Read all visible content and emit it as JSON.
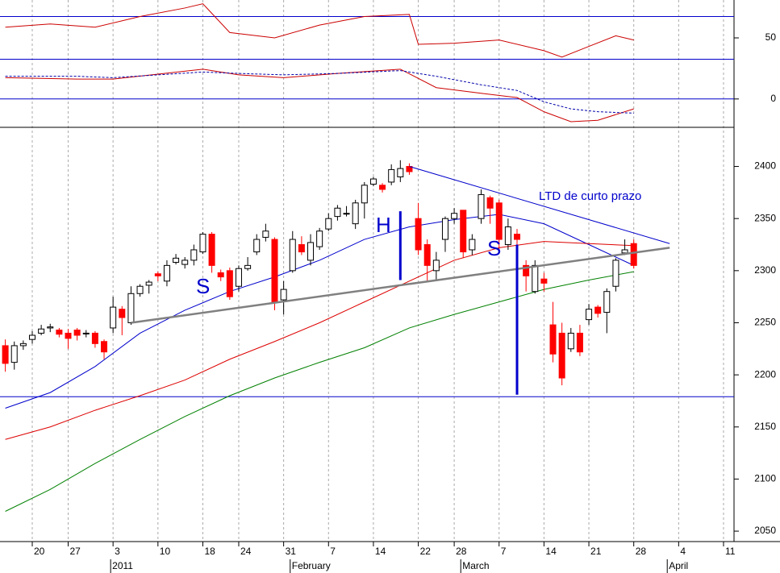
{
  "chart_data": {
    "type": "candlestick",
    "categories": [
      null,
      null,
      null,
      "20",
      null,
      null,
      null,
      "27",
      null,
      null,
      null,
      null,
      "3",
      null,
      null,
      null,
      null,
      "10",
      null,
      null,
      null,
      null,
      "18",
      null,
      null,
      null,
      "24",
      null,
      null,
      null,
      null,
      "31",
      null,
      null,
      null,
      null,
      "7",
      null,
      null,
      null,
      null,
      "14",
      null,
      null,
      null,
      null,
      "22",
      null,
      null,
      null,
      "28",
      null,
      null,
      null,
      null,
      "7",
      null,
      null,
      null,
      null,
      "14",
      null,
      null,
      null,
      null,
      "21",
      null,
      null,
      null,
      null,
      "28",
      null,
      null,
      null,
      null,
      "4",
      null,
      null,
      null,
      null,
      "11"
    ],
    "months": [
      "2011",
      "February",
      "March",
      "April"
    ],
    "grid": true,
    "price": {
      "ylim": [
        2040,
        2436
      ],
      "yticks": [
        2050,
        2100,
        2150,
        2200,
        2250,
        2300,
        2350,
        2400
      ],
      "up_color": "#ffffff",
      "down_color": "#ff0000",
      "open": [
        2228,
        2212,
        2228,
        2234,
        2240,
        2245,
        2243,
        2240,
        2243,
        2240,
        2240,
        2232,
        2245,
        2263,
        2250,
        2278,
        2286,
        2297,
        2290,
        2308,
        2306,
        2310,
        2318,
        2335,
        2298,
        2300,
        2285,
        2302,
        2318,
        2332,
        2330,
        2272,
        2300,
        2325,
        2310,
        2323,
        2340,
        2352,
        2355,
        2345,
        2365,
        2383,
        2382,
        2385,
        2390,
        2400,
        2350,
        2325,
        2300,
        2330,
        2350,
        2358,
        2320,
        2350,
        2370,
        2365,
        2325,
        2335,
        2305,
        2280,
        2292,
        2248,
        2240,
        2225,
        2240,
        2253,
        2265,
        2260,
        2285,
        2317,
        2326,
        null,
        null,
        null,
        null,
        null,
        null,
        null,
        null,
        null,
        null
      ],
      "high": [
        2234,
        2232,
        2233,
        2242,
        2248,
        2249,
        2245,
        2244,
        2245,
        2243,
        2242,
        2234,
        2275,
        2266,
        2285,
        2287,
        2291,
        2299,
        2310,
        2316,
        2313,
        2325,
        2337,
        2337,
        2301,
        2303,
        2305,
        2313,
        2335,
        2345,
        2332,
        2290,
        2338,
        2333,
        2335,
        2341,
        2355,
        2363,
        2362,
        2368,
        2385,
        2390,
        2384,
        2402,
        2406,
        2403,
        2365,
        2330,
        2318,
        2352,
        2360,
        2358,
        2335,
        2378,
        2372,
        2368,
        2350,
        2340,
        2310,
        2310,
        2298,
        2270,
        2250,
        2245,
        2248,
        2268,
        2267,
        2283,
        2312,
        2330,
        2330,
        null,
        null,
        null,
        null,
        null,
        null,
        null,
        null,
        null,
        null
      ],
      "low": [
        2203,
        2205,
        2224,
        2230,
        2238,
        2241,
        2236,
        2225,
        2233,
        2236,
        2226,
        2215,
        2240,
        2238,
        2248,
        2275,
        2278,
        2290,
        2285,
        2306,
        2302,
        2305,
        2316,
        2298,
        2290,
        2272,
        2280,
        2300,
        2315,
        2328,
        2262,
        2258,
        2298,
        2315,
        2305,
        2320,
        2338,
        2348,
        2352,
        2340,
        2350,
        2381,
        2375,
        2382,
        2385,
        2392,
        2315,
        2290,
        2290,
        2318,
        2345,
        2312,
        2315,
        2345,
        2345,
        2320,
        2320,
        2318,
        2280,
        2278,
        2280,
        2212,
        2190,
        2222,
        2218,
        2248,
        2255,
        2240,
        2280,
        2315,
        2302,
        null,
        null,
        null,
        null,
        null,
        null,
        null,
        null,
        null,
        null
      ],
      "close": [
        2211,
        2228,
        2230,
        2238,
        2244,
        2246,
        2239,
        2235,
        2238,
        2240,
        2230,
        2222,
        2265,
        2255,
        2278,
        2285,
        2289,
        2295,
        2305,
        2312,
        2310,
        2320,
        2335,
        2305,
        2294,
        2275,
        2302,
        2305,
        2330,
        2338,
        2270,
        2282,
        2330,
        2318,
        2327,
        2338,
        2350,
        2360,
        2355,
        2365,
        2382,
        2388,
        2378,
        2397,
        2398,
        2395,
        2320,
        2305,
        2310,
        2350,
        2355,
        2318,
        2330,
        2373,
        2360,
        2330,
        2342,
        2330,
        2295,
        2305,
        2288,
        2220,
        2197,
        2240,
        2222,
        2263,
        2259,
        2280,
        2310,
        2320,
        2305,
        null,
        null,
        null,
        null,
        null,
        null,
        null,
        null,
        null,
        null
      ],
      "moving_averages": [
        {
          "color": "#0000cc",
          "x": [
            0,
            5,
            10,
            15,
            20,
            25,
            30,
            35,
            40,
            45,
            50,
            55,
            60,
            65,
            70
          ],
          "values": [
            2168,
            2183,
            2208,
            2240,
            2262,
            2280,
            2294,
            2310,
            2330,
            2342,
            2349,
            2354,
            2345,
            2325,
            2305
          ]
        },
        {
          "color": "#dd0000",
          "x": [
            0,
            5,
            10,
            15,
            20,
            25,
            30,
            35,
            40,
            45,
            50,
            55,
            60,
            65,
            70
          ],
          "values": [
            2138,
            2150,
            2166,
            2180,
            2195,
            2215,
            2232,
            2250,
            2270,
            2290,
            2310,
            2322,
            2328,
            2326,
            2324
          ]
        },
        {
          "color": "#008000",
          "x": [
            0,
            5,
            10,
            15,
            20,
            25,
            30,
            35,
            40,
            45,
            50,
            55,
            60,
            65,
            70
          ],
          "values": [
            2069,
            2090,
            2115,
            2138,
            2160,
            2180,
            2197,
            2212,
            2226,
            2245,
            2258,
            2270,
            2282,
            2291,
            2299
          ]
        }
      ],
      "trend_lines": [
        {
          "color": "#808080",
          "x": [
            14,
            74
          ],
          "values": [
            2250,
            2322
          ]
        },
        {
          "color": "#0000cc",
          "x": [
            45,
            74
          ],
          "values": [
            2400,
            2326
          ]
        },
        {
          "color": "#0000cc",
          "x": [
            44,
            44
          ],
          "values": [
            2357,
            2291
          ]
        },
        {
          "color": "#0000cc",
          "x": [
            57,
            57
          ],
          "values": [
            2325,
            2181
          ]
        }
      ],
      "levels": [
        2179
      ],
      "annotations": [
        "S",
        "H",
        "S",
        "LTD de curto prazo"
      ]
    },
    "oscillator": {
      "ylim": [
        14.5,
        85.5
      ],
      "yticks": [
        50
      ],
      "levels": [
        30,
        70
      ],
      "series": [
        {
          "color": "#cc0000",
          "x": [
            0,
            5,
            10,
            15,
            20,
            22,
            25,
            30,
            35,
            40,
            45,
            46,
            50,
            55,
            60,
            62,
            65,
            68,
            70
          ],
          "values": [
            60,
            63,
            60,
            70,
            78,
            82,
            55,
            50,
            62,
            70,
            72,
            44,
            45,
            48,
            38,
            32,
            42,
            52,
            48
          ]
        }
      ]
    },
    "macd": {
      "ylim": [
        -20,
        30
      ],
      "yticks": [
        0
      ],
      "levels": [
        0
      ],
      "series": [
        {
          "color": "#cc0000",
          "x": [
            0,
            8,
            12,
            22,
            26,
            31,
            37,
            44,
            48,
            53,
            57,
            60,
            63,
            66,
            70
          ],
          "values": [
            15,
            14,
            14,
            21,
            17,
            15,
            18,
            21,
            8,
            4,
            1,
            -9,
            -16,
            -15,
            -7
          ]
        },
        {
          "color": "#0000aa",
          "dashed": true,
          "x": [
            0,
            8,
            12,
            22,
            26,
            31,
            37,
            44,
            48,
            53,
            57,
            60,
            63,
            66,
            70
          ],
          "values": [
            16,
            16,
            15,
            19,
            18,
            17,
            18,
            20,
            16,
            10,
            6,
            -2,
            -7,
            -9,
            -10
          ]
        }
      ]
    }
  }
}
